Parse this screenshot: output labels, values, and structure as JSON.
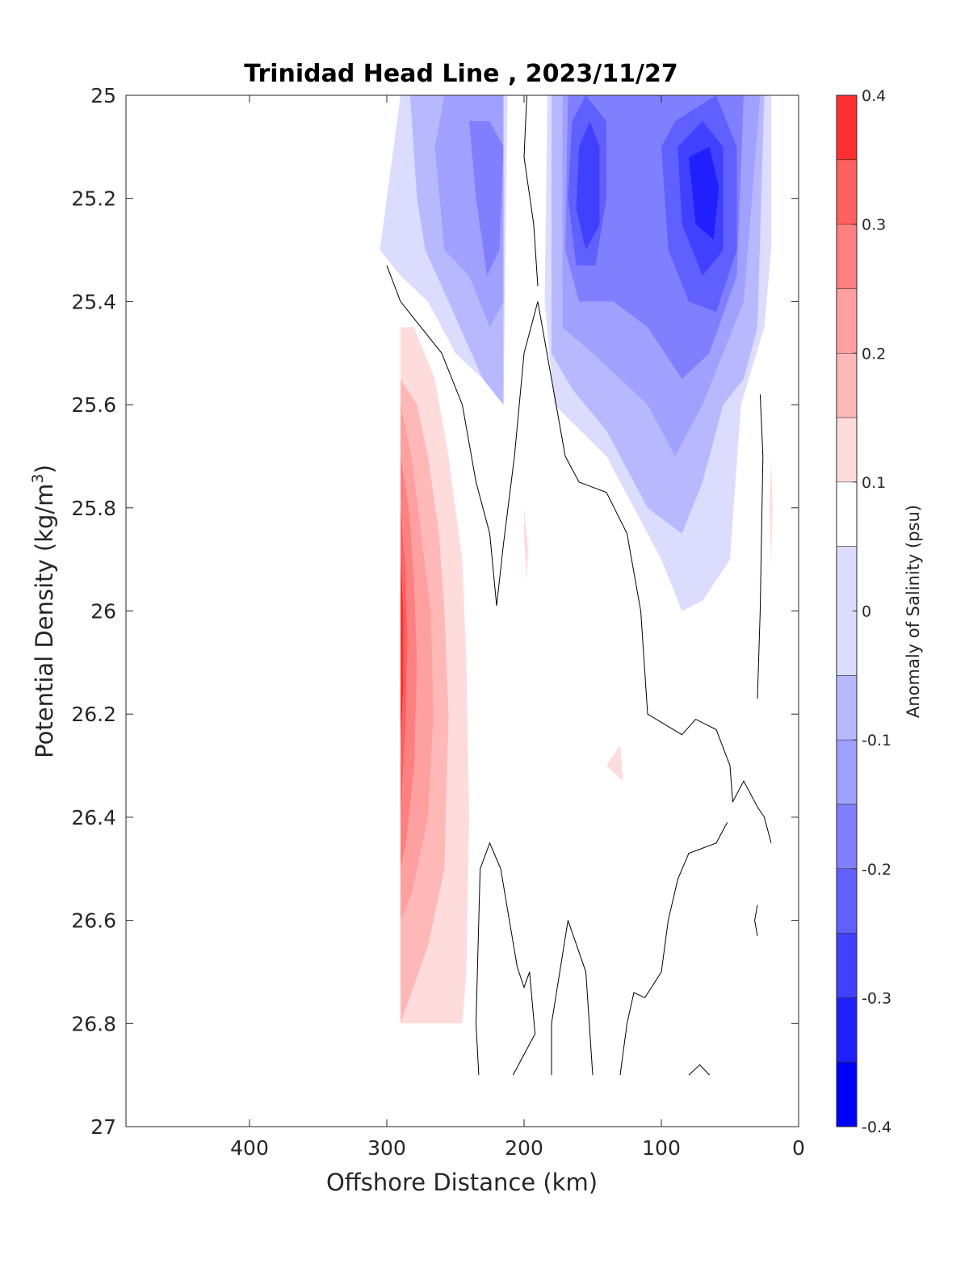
{
  "chart_data": {
    "type": "heatmap",
    "title": "Trinidad Head Line , 2023/11/27",
    "xlabel": "Offshore Distance (km)",
    "ylabel_main": "Potential Density (kg/m",
    "ylabel_sup": "3",
    "ylabel_close": ")",
    "colorbar_label": "Anomaly of Salinity (psu)",
    "x_reversed": true,
    "xlim": [
      0,
      490
    ],
    "ylim": [
      25,
      27
    ],
    "y_reversed": true,
    "x_ticks": [
      {
        "value": 400,
        "label": "400"
      },
      {
        "value": 300,
        "label": "300"
      },
      {
        "value": 200,
        "label": "200"
      },
      {
        "value": 100,
        "label": "100"
      },
      {
        "value": 0,
        "label": "0"
      }
    ],
    "y_ticks": [
      {
        "value": 25.0,
        "label": "25"
      },
      {
        "value": 25.2,
        "label": "25.2"
      },
      {
        "value": 25.4,
        "label": "25.4"
      },
      {
        "value": 25.6,
        "label": "25.6"
      },
      {
        "value": 25.8,
        "label": "25.8"
      },
      {
        "value": 26.0,
        "label": "26"
      },
      {
        "value": 26.2,
        "label": "26.2"
      },
      {
        "value": 26.4,
        "label": "26.4"
      },
      {
        "value": 26.6,
        "label": "26.6"
      },
      {
        "value": 26.8,
        "label": "26.8"
      },
      {
        "value": 27.0,
        "label": "27"
      }
    ],
    "colorbar": {
      "min": -0.4,
      "max": 0.4,
      "levels": [
        -0.4,
        -0.35,
        -0.3,
        -0.25,
        -0.2,
        -0.15,
        -0.1,
        -0.05,
        0.05,
        0.1,
        0.15,
        0.2,
        0.25,
        0.3,
        0.35,
        0.4
      ],
      "colors": [
        "#0000ff",
        "#2020ff",
        "#4040ff",
        "#6060ff",
        "#8080ff",
        "#a0a0ff",
        "#b8b8ff",
        "#dcdcff",
        "#ffffff",
        "#ffdcdc",
        "#ffb8b8",
        "#ffa0a0",
        "#ff8080",
        "#ff6060",
        "#ff3030",
        "#ff0000"
      ],
      "ticks": [
        {
          "value": 0.4,
          "label": "0.4"
        },
        {
          "value": 0.3,
          "label": "0.3"
        },
        {
          "value": 0.2,
          "label": "0.2"
        },
        {
          "value": 0.1,
          "label": "0.1"
        },
        {
          "value": 0.0,
          "label": "0"
        },
        {
          "value": -0.1,
          "label": "-0.1"
        },
        {
          "value": -0.2,
          "label": "-0.2"
        },
        {
          "value": -0.3,
          "label": "-0.3"
        },
        {
          "value": -0.4,
          "label": "-0.4"
        }
      ]
    },
    "regions": [
      {
        "name": "neg-outer-offshore",
        "color": "#dcdcff",
        "points": [
          [
            290,
            25.0
          ],
          [
            305,
            25.3
          ],
          [
            290,
            25.35
          ],
          [
            270,
            25.4
          ],
          [
            250,
            25.5
          ],
          [
            230,
            25.55
          ],
          [
            215,
            25.6
          ],
          [
            212,
            25.0
          ]
        ]
      },
      {
        "name": "neg-band2-offshore",
        "color": "#b8b8ff",
        "points": [
          [
            283,
            25.0
          ],
          [
            278,
            25.2
          ],
          [
            272,
            25.3
          ],
          [
            255,
            25.4
          ],
          [
            230,
            25.55
          ],
          [
            215,
            25.6
          ],
          [
            215,
            25.0
          ]
        ]
      },
      {
        "name": "neg-band3-offshore",
        "color": "#a0a0ff",
        "points": [
          [
            258,
            25.0
          ],
          [
            265,
            25.1
          ],
          [
            258,
            25.3
          ],
          [
            240,
            25.35
          ],
          [
            225,
            25.45
          ],
          [
            215,
            25.4
          ],
          [
            215,
            25.0
          ]
        ]
      },
      {
        "name": "neg-band4-offshore",
        "color": "#8080ff",
        "points": [
          [
            240,
            25.05
          ],
          [
            235,
            25.2
          ],
          [
            227,
            25.35
          ],
          [
            218,
            25.3
          ],
          [
            215,
            25.1
          ],
          [
            225,
            25.05
          ]
        ]
      },
      {
        "name": "neg-outer-nearshore",
        "color": "#dcdcff",
        "points": [
          [
            183,
            25.0
          ],
          [
            185,
            25.4
          ],
          [
            178,
            25.6
          ],
          [
            140,
            25.7
          ],
          [
            100,
            25.9
          ],
          [
            85,
            26.0
          ],
          [
            70,
            25.98
          ],
          [
            50,
            25.9
          ],
          [
            42,
            25.6
          ],
          [
            25,
            25.45
          ],
          [
            20,
            25.3
          ],
          [
            20,
            25.0
          ]
        ]
      },
      {
        "name": "neg-band2-nearshore",
        "color": "#b8b8ff",
        "points": [
          [
            180,
            25.0
          ],
          [
            180,
            25.5
          ],
          [
            165,
            25.57
          ],
          [
            140,
            25.65
          ],
          [
            110,
            25.8
          ],
          [
            85,
            25.85
          ],
          [
            70,
            25.75
          ],
          [
            55,
            25.6
          ],
          [
            40,
            25.55
          ],
          [
            30,
            25.45
          ],
          [
            25,
            25.0
          ]
        ]
      },
      {
        "name": "neg-band3-nearshore",
        "color": "#a0a0ff",
        "points": [
          [
            172,
            25.0
          ],
          [
            172,
            25.45
          ],
          [
            150,
            25.5
          ],
          [
            110,
            25.6
          ],
          [
            90,
            25.7
          ],
          [
            70,
            25.6
          ],
          [
            55,
            25.5
          ],
          [
            40,
            25.4
          ],
          [
            28,
            25.0
          ]
        ]
      },
      {
        "name": "neg-band4-nearshore",
        "color": "#8080ff",
        "points": [
          [
            168,
            25.0
          ],
          [
            170,
            25.3
          ],
          [
            160,
            25.4
          ],
          [
            135,
            25.4
          ],
          [
            110,
            25.45
          ],
          [
            85,
            25.55
          ],
          [
            65,
            25.5
          ],
          [
            45,
            25.35
          ],
          [
            40,
            25.0
          ]
        ]
      },
      {
        "name": "neg-band5-nearshore-a",
        "color": "#6060ff",
        "points": [
          [
            165,
            25.05
          ],
          [
            168,
            25.2
          ],
          [
            162,
            25.33
          ],
          [
            148,
            25.33
          ],
          [
            140,
            25.2
          ],
          [
            140,
            25.05
          ],
          [
            155,
            25.0
          ]
        ]
      },
      {
        "name": "neg-band5-nearshore-b",
        "color": "#6060ff",
        "points": [
          [
            100,
            25.1
          ],
          [
            95,
            25.3
          ],
          [
            80,
            25.4
          ],
          [
            60,
            25.42
          ],
          [
            45,
            25.3
          ],
          [
            45,
            25.1
          ],
          [
            60,
            25.0
          ],
          [
            90,
            25.05
          ]
        ]
      },
      {
        "name": "neg-band6-nearshore-a",
        "color": "#4040ff",
        "points": [
          [
            160,
            25.1
          ],
          [
            162,
            25.22
          ],
          [
            155,
            25.3
          ],
          [
            145,
            25.25
          ],
          [
            145,
            25.1
          ],
          [
            152,
            25.05
          ]
        ]
      },
      {
        "name": "neg-band6-nearshore-b",
        "color": "#4040ff",
        "points": [
          [
            88,
            25.1
          ],
          [
            85,
            25.25
          ],
          [
            70,
            25.35
          ],
          [
            55,
            25.3
          ],
          [
            55,
            25.1
          ],
          [
            70,
            25.05
          ]
        ]
      },
      {
        "name": "neg-band7-nearshore",
        "color": "#2020ff",
        "points": [
          [
            80,
            25.12
          ],
          [
            75,
            25.25
          ],
          [
            62,
            25.28
          ],
          [
            58,
            25.18
          ],
          [
            65,
            25.1
          ]
        ]
      },
      {
        "name": "pos-outer",
        "color": "#ffdcdc",
        "points": [
          [
            290,
            25.45
          ],
          [
            280,
            25.45
          ],
          [
            265,
            25.55
          ],
          [
            255,
            25.7
          ],
          [
            245,
            25.9
          ],
          [
            242,
            26.1
          ],
          [
            240,
            26.4
          ],
          [
            242,
            26.7
          ],
          [
            245,
            26.8
          ],
          [
            290,
            26.8
          ]
        ]
      },
      {
        "name": "pos-band2",
        "color": "#ffb8b8",
        "points": [
          [
            290,
            25.55
          ],
          [
            278,
            25.6
          ],
          [
            270,
            25.7
          ],
          [
            262,
            25.85
          ],
          [
            258,
            26.0
          ],
          [
            255,
            26.2
          ],
          [
            258,
            26.5
          ],
          [
            270,
            26.65
          ],
          [
            290,
            26.8
          ]
        ]
      },
      {
        "name": "pos-band3",
        "color": "#ffa0a0",
        "points": [
          [
            290,
            25.6
          ],
          [
            282,
            25.7
          ],
          [
            275,
            25.85
          ],
          [
            268,
            26.0
          ],
          [
            266,
            26.2
          ],
          [
            270,
            26.4
          ],
          [
            282,
            26.55
          ],
          [
            290,
            26.6
          ]
        ]
      },
      {
        "name": "pos-band4",
        "color": "#ff8080",
        "points": [
          [
            290,
            25.7
          ],
          [
            284,
            25.8
          ],
          [
            280,
            25.95
          ],
          [
            278,
            26.1
          ],
          [
            280,
            26.3
          ],
          [
            286,
            26.45
          ],
          [
            290,
            26.5
          ]
        ]
      },
      {
        "name": "pos-band5",
        "color": "#ff6060",
        "points": [
          [
            290,
            25.8
          ],
          [
            287,
            25.9
          ],
          [
            285,
            26.05
          ],
          [
            286,
            26.2
          ],
          [
            290,
            26.4
          ]
        ]
      },
      {
        "name": "pos-band6",
        "color": "#ff3030",
        "points": [
          [
            290,
            25.9
          ],
          [
            288,
            26.0
          ],
          [
            288,
            26.15
          ],
          [
            290,
            26.25
          ]
        ]
      },
      {
        "name": "pos-blob-200",
        "color": "#ffdcdc",
        "points": [
          [
            200,
            25.8
          ],
          [
            197,
            25.88
          ],
          [
            198,
            25.94
          ],
          [
            200,
            25.86
          ]
        ]
      },
      {
        "name": "pos-blob-130",
        "color": "#ffdcdc",
        "points": [
          [
            130,
            26.26
          ],
          [
            140,
            26.3
          ],
          [
            128,
            26.33
          ],
          [
            129,
            26.29
          ]
        ]
      },
      {
        "name": "pos-blob-20",
        "color": "#ffdcdc",
        "points": [
          [
            20,
            25.7
          ],
          [
            21,
            25.8
          ],
          [
            20,
            25.92
          ],
          [
            19,
            25.8
          ]
        ]
      }
    ],
    "contours": [
      [
        [
          300,
          25.33
        ],
        [
          290,
          25.4
        ],
        [
          260,
          25.5
        ],
        [
          245,
          25.6
        ],
        [
          235,
          25.75
        ],
        [
          225,
          25.85
        ],
        [
          220,
          25.99
        ]
      ],
      [
        [
          220,
          25.99
        ],
        [
          215,
          25.87
        ],
        [
          207,
          25.7
        ],
        [
          200,
          25.5
        ],
        [
          190,
          25.4
        ],
        [
          180,
          25.55
        ],
        [
          170,
          25.7
        ],
        [
          160,
          25.75
        ],
        [
          150,
          25.76
        ],
        [
          140,
          25.77
        ],
        [
          125,
          25.85
        ],
        [
          115,
          26.0
        ],
        [
          110,
          26.2
        ],
        [
          85,
          26.24
        ],
        [
          75,
          26.21
        ],
        [
          60,
          26.23
        ],
        [
          50,
          26.3
        ],
        [
          48,
          26.37
        ],
        [
          40,
          26.33
        ],
        [
          30,
          26.38
        ],
        [
          25,
          26.4
        ],
        [
          20,
          26.45
        ]
      ],
      [
        [
          190,
          25.37
        ],
        [
          193,
          25.25
        ],
        [
          200,
          25.12
        ],
        [
          198,
          25.0
        ]
      ],
      [
        [
          233,
          26.9
        ],
        [
          235,
          26.8
        ],
        [
          232,
          26.5
        ],
        [
          225,
          26.45
        ],
        [
          217,
          26.5
        ],
        [
          212,
          26.58
        ],
        [
          205,
          26.69
        ],
        [
          200,
          26.73
        ],
        [
          196,
          26.7
        ],
        [
          192,
          26.82
        ],
        [
          208,
          26.9
        ]
      ],
      [
        [
          180,
          26.9
        ],
        [
          180,
          26.8
        ],
        [
          177,
          26.75
        ],
        [
          168,
          26.6
        ],
        [
          155,
          26.7
        ],
        [
          150,
          26.9
        ]
      ],
      [
        [
          130,
          26.9
        ],
        [
          125,
          26.8
        ],
        [
          120,
          26.74
        ],
        [
          112,
          26.75
        ],
        [
          100,
          26.7
        ],
        [
          95,
          26.6
        ],
        [
          88,
          26.52
        ],
        [
          80,
          26.47
        ],
        [
          60,
          26.45
        ],
        [
          52,
          26.41
        ]
      ],
      [
        [
          28,
          25.58
        ],
        [
          26,
          25.7
        ],
        [
          28,
          26.0
        ],
        [
          30,
          26.17
        ]
      ],
      [
        [
          30,
          26.57
        ],
        [
          32,
          26.6
        ],
        [
          30,
          26.63
        ]
      ],
      [
        [
          80,
          26.9
        ],
        [
          72,
          26.88
        ],
        [
          65,
          26.9
        ]
      ]
    ]
  }
}
